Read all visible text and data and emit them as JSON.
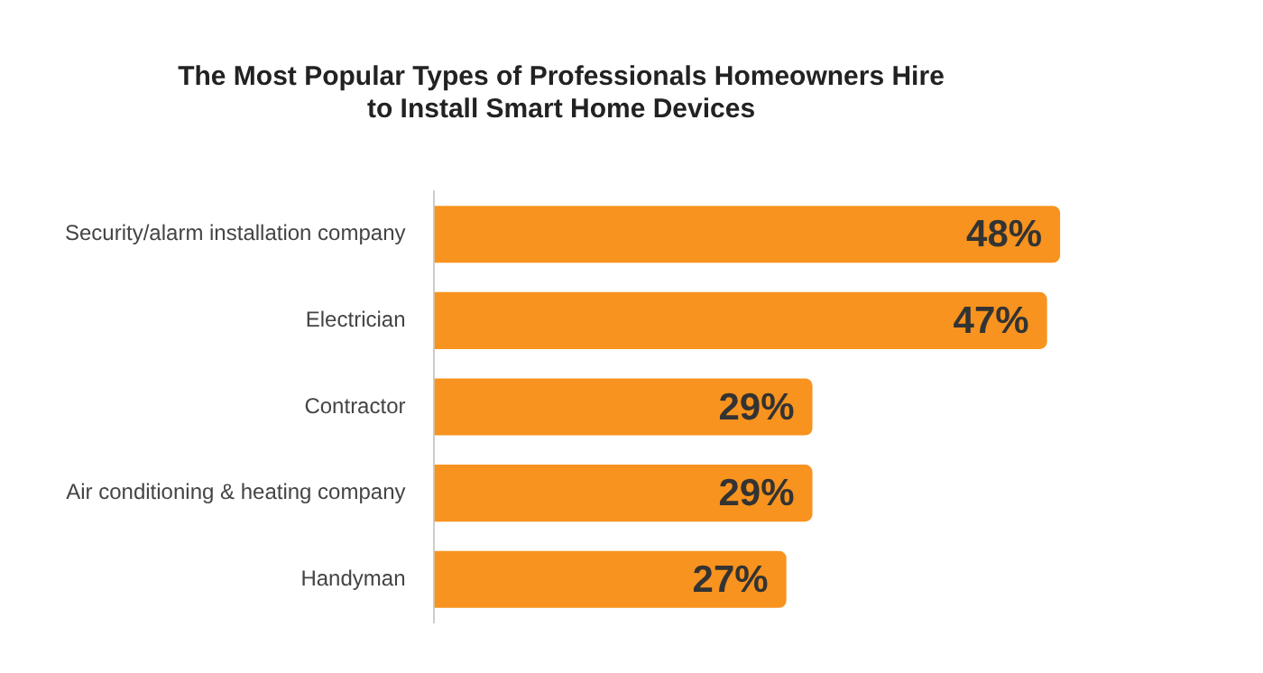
{
  "chart_data": {
    "type": "bar",
    "orientation": "horizontal",
    "title": "The Most Popular Types of Professionals Homeowners Hire\nto Install Smart Home Devices",
    "categories": [
      "Security/alarm installation company",
      "Electrician",
      "Contractor",
      "Air conditioning & heating company",
      "Handyman"
    ],
    "values": [
      48,
      47,
      29,
      29,
      27
    ],
    "color": "#f7931e",
    "data_labels": true,
    "value_labels": [
      "48%",
      "47%",
      "29%",
      "29%",
      "27%"
    ],
    "grid": false,
    "legend": false
  }
}
